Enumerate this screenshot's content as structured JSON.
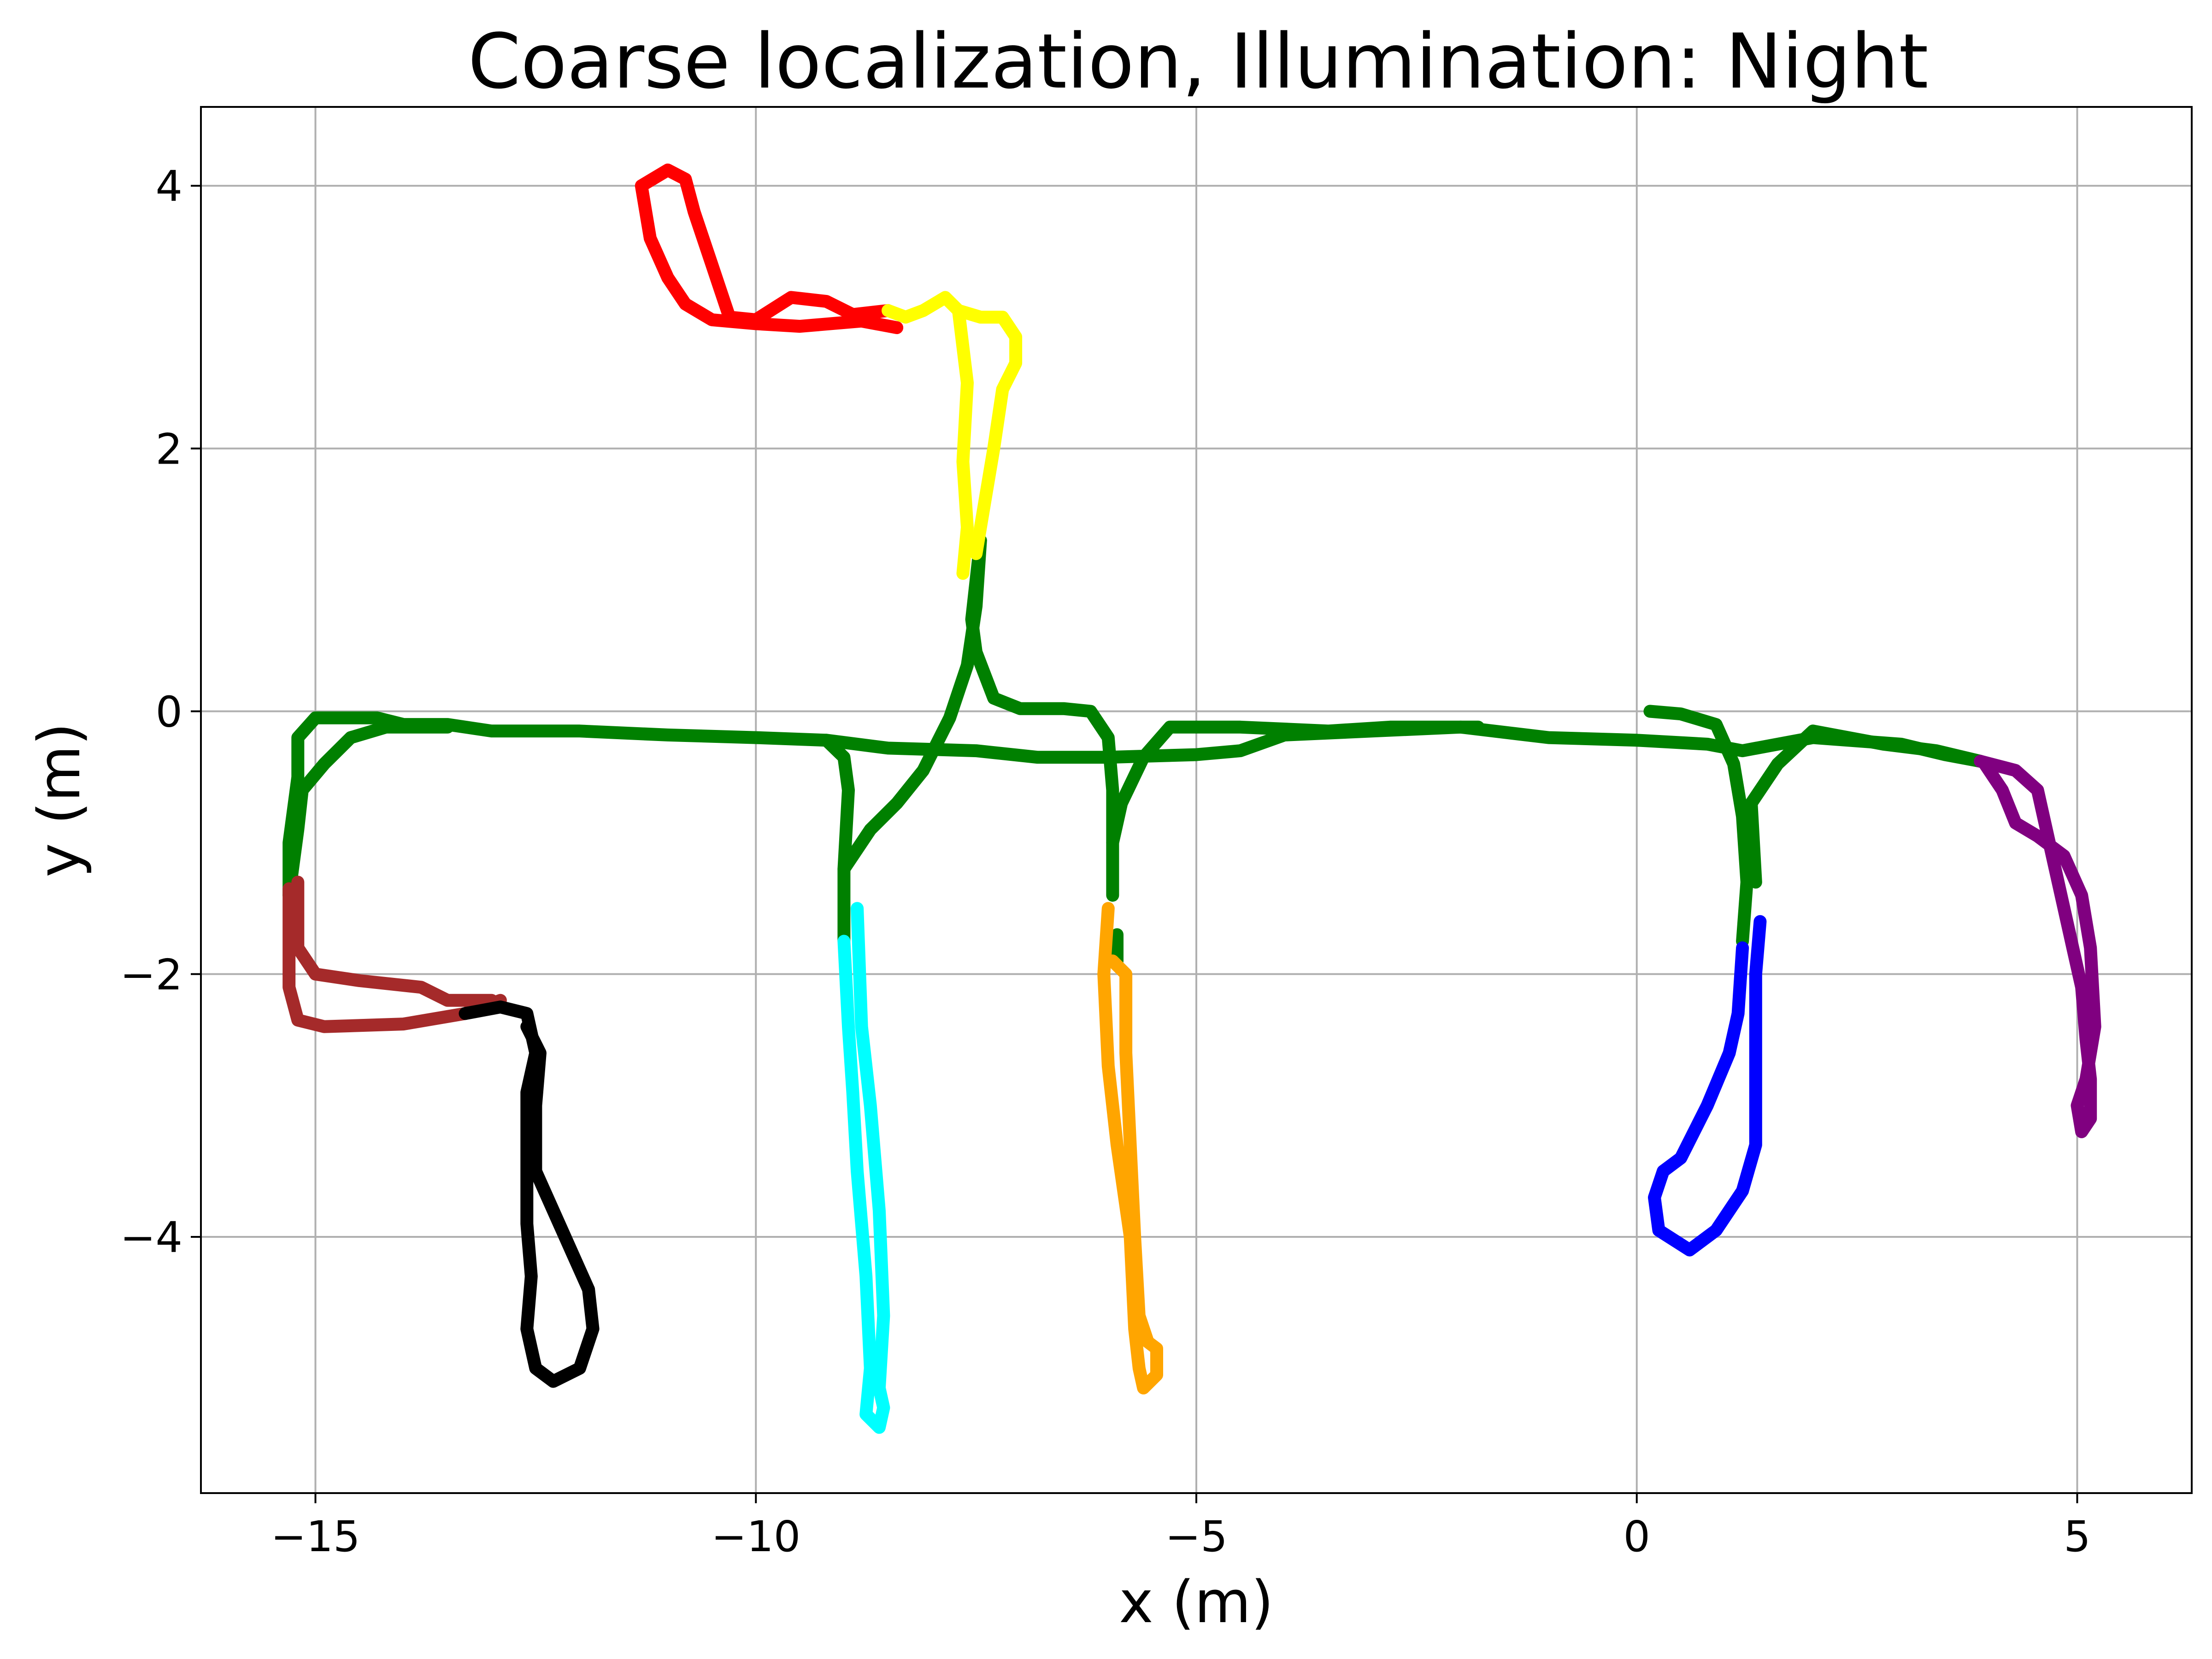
{
  "chart_data": {
    "type": "line",
    "title": "Coarse localization, Illumination: Night",
    "xlabel": "x (m)",
    "ylabel": "y (m)",
    "xlim": [
      -16.3,
      6.3
    ],
    "ylim": [
      -5.95,
      4.6
    ],
    "grid": true,
    "x_ticks": [
      -15,
      -10,
      -5,
      0,
      5
    ],
    "x_tick_labels": [
      "−15",
      "−10",
      "−5",
      "0",
      "5"
    ],
    "y_ticks": [
      -4,
      -2,
      0,
      2,
      4
    ],
    "y_tick_labels": [
      "−4",
      "−2",
      "0",
      "2",
      "4"
    ],
    "series": [
      {
        "color": "#008000",
        "segments": [
          [
            [
              -15.3,
              -1.4
            ],
            [
              -15.3,
              -1.0
            ],
            [
              -15.2,
              -0.5
            ],
            [
              -15.2,
              -0.2
            ],
            [
              -15.0,
              -0.05
            ],
            [
              -14.3,
              -0.05
            ],
            [
              -14.0,
              -0.1
            ],
            [
              -13.5,
              -0.1
            ],
            [
              -13.0,
              -0.15
            ],
            [
              -12.0,
              -0.15
            ],
            [
              -11.0,
              -0.18
            ],
            [
              -10.0,
              -0.2
            ],
            [
              -9.2,
              -0.22
            ],
            [
              -8.5,
              -0.28
            ],
            [
              -7.5,
              -0.3
            ],
            [
              -6.8,
              -0.35
            ],
            [
              -6.0,
              -0.35
            ],
            [
              -5.0,
              -0.33
            ],
            [
              -4.5,
              -0.3
            ],
            [
              -4.0,
              -0.18
            ],
            [
              -3.0,
              -0.15
            ],
            [
              -2.0,
              -0.12
            ],
            [
              -1.0,
              -0.2
            ],
            [
              0.0,
              -0.22
            ],
            [
              0.8,
              -0.25
            ],
            [
              1.2,
              -0.3
            ],
            [
              2.0,
              -0.2
            ],
            [
              3.0,
              -0.25
            ],
            [
              3.5,
              -0.33
            ],
            [
              3.9,
              -0.38
            ]
          ],
          [
            [
              -15.3,
              -1.4
            ],
            [
              -15.2,
              -0.9
            ],
            [
              -15.15,
              -0.6
            ],
            [
              -14.9,
              -0.4
            ],
            [
              -14.6,
              -0.2
            ],
            [
              -14.2,
              -0.12
            ],
            [
              -13.5,
              -0.12
            ]
          ],
          [
            [
              -9.0,
              -1.75
            ],
            [
              -9.0,
              -1.2
            ],
            [
              -8.95,
              -0.6
            ],
            [
              -9.0,
              -0.35
            ],
            [
              -9.2,
              -0.22
            ]
          ],
          [
            [
              -9.0,
              -1.2
            ],
            [
              -8.7,
              -0.9
            ],
            [
              -8.4,
              -0.7
            ],
            [
              -8.1,
              -0.45
            ],
            [
              -7.8,
              -0.05
            ],
            [
              -7.6,
              0.35
            ],
            [
              -7.5,
              0.8
            ],
            [
              -7.45,
              1.3
            ]
          ],
          [
            [
              -7.45,
              1.3
            ],
            [
              -7.55,
              0.7
            ],
            [
              -7.5,
              0.45
            ],
            [
              -7.3,
              0.1
            ],
            [
              -7.0,
              0.02
            ],
            [
              -6.5,
              0.02
            ],
            [
              -6.2,
              0.0
            ],
            [
              -6.0,
              -0.2
            ],
            [
              -5.95,
              -0.6
            ],
            [
              -5.95,
              -1.0
            ],
            [
              -5.95,
              -1.4
            ]
          ],
          [
            [
              -5.95,
              -1.0
            ],
            [
              -5.85,
              -0.7
            ],
            [
              -5.6,
              -0.35
            ],
            [
              -5.3,
              -0.12
            ],
            [
              -4.5,
              -0.12
            ],
            [
              -3.5,
              -0.15
            ],
            [
              -2.8,
              -0.12
            ],
            [
              -1.8,
              -0.12
            ]
          ],
          [
            [
              -5.9,
              -1.7
            ],
            [
              -5.9,
              -1.9
            ]
          ],
          [
            [
              1.2,
              -1.75
            ],
            [
              1.25,
              -1.3
            ],
            [
              1.2,
              -0.8
            ],
            [
              1.1,
              -0.4
            ],
            [
              0.9,
              -0.1
            ],
            [
              0.5,
              -0.02
            ],
            [
              0.15,
              0.0
            ]
          ],
          [
            [
              1.35,
              -1.3
            ],
            [
              1.3,
              -0.7
            ],
            [
              1.6,
              -0.4
            ],
            [
              2.0,
              -0.15
            ],
            [
              2.8,
              -0.25
            ],
            [
              3.4,
              -0.3
            ],
            [
              3.9,
              -0.38
            ]
          ]
        ]
      },
      {
        "color": "#a52a2a",
        "segments": [
          [
            [
              -15.3,
              -1.35
            ],
            [
              -15.3,
              -1.8
            ],
            [
              -15.3,
              -2.1
            ],
            [
              -15.2,
              -2.35
            ],
            [
              -14.9,
              -2.4
            ],
            [
              -14.0,
              -2.38
            ],
            [
              -13.3,
              -2.3
            ],
            [
              -12.9,
              -2.2
            ]
          ],
          [
            [
              -15.2,
              -1.3
            ],
            [
              -15.2,
              -1.8
            ],
            [
              -15.0,
              -2.0
            ],
            [
              -14.5,
              -2.05
            ],
            [
              -13.8,
              -2.1
            ],
            [
              -13.5,
              -2.2
            ],
            [
              -13.0,
              -2.2
            ]
          ]
        ]
      },
      {
        "color": "#000000",
        "segments": [
          [
            [
              -13.3,
              -2.3
            ],
            [
              -12.9,
              -2.25
            ],
            [
              -12.6,
              -2.3
            ],
            [
              -12.5,
              -2.6
            ],
            [
              -12.6,
              -2.9
            ],
            [
              -12.6,
              -3.4
            ],
            [
              -12.6,
              -3.9
            ],
            [
              -12.55,
              -4.3
            ],
            [
              -12.6,
              -4.7
            ],
            [
              -12.5,
              -5.0
            ],
            [
              -12.3,
              -5.1
            ],
            [
              -12.0,
              -5.0
            ],
            [
              -11.85,
              -4.7
            ],
            [
              -11.9,
              -4.4
            ],
            [
              -12.1,
              -4.1
            ],
            [
              -12.3,
              -3.8
            ],
            [
              -12.5,
              -3.5
            ],
            [
              -12.5,
              -3.0
            ],
            [
              -12.45,
              -2.6
            ],
            [
              -12.6,
              -2.4
            ]
          ]
        ]
      },
      {
        "color": "#00ffff",
        "segments": [
          [
            [
              -9.0,
              -1.75
            ],
            [
              -8.95,
              -2.4
            ],
            [
              -8.9,
              -2.9
            ],
            [
              -8.85,
              -3.5
            ],
            [
              -8.75,
              -4.3
            ],
            [
              -8.7,
              -5.0
            ],
            [
              -8.75,
              -5.35
            ],
            [
              -8.6,
              -5.45
            ],
            [
              -8.55,
              -5.3
            ],
            [
              -8.6,
              -5.15
            ],
            [
              -8.55,
              -4.6
            ],
            [
              -8.6,
              -3.8
            ],
            [
              -8.7,
              -3.0
            ],
            [
              -8.8,
              -2.4
            ],
            [
              -8.85,
              -1.5
            ]
          ]
        ]
      },
      {
        "color": "#ffa500",
        "segments": [
          [
            [
              -6.0,
              -1.5
            ],
            [
              -6.05,
              -2.0
            ],
            [
              -6.0,
              -2.7
            ],
            [
              -5.9,
              -3.3
            ],
            [
              -5.75,
              -4.0
            ],
            [
              -5.7,
              -4.7
            ],
            [
              -5.65,
              -5.0
            ],
            [
              -5.6,
              -5.15
            ],
            [
              -5.45,
              -5.05
            ],
            [
              -5.45,
              -4.85
            ],
            [
              -5.55,
              -4.8
            ],
            [
              -5.65,
              -4.6
            ],
            [
              -5.7,
              -4.0
            ],
            [
              -5.75,
              -3.3
            ],
            [
              -5.8,
              -2.6
            ],
            [
              -5.8,
              -2.0
            ],
            [
              -5.95,
              -1.9
            ]
          ]
        ]
      },
      {
        "color": "#0000ff",
        "segments": [
          [
            [
              1.2,
              -1.8
            ],
            [
              1.15,
              -2.3
            ],
            [
              1.05,
              -2.6
            ],
            [
              0.8,
              -3.0
            ],
            [
              0.5,
              -3.4
            ],
            [
              0.3,
              -3.5
            ],
            [
              0.2,
              -3.7
            ],
            [
              0.25,
              -3.95
            ],
            [
              0.6,
              -4.1
            ],
            [
              0.9,
              -3.95
            ],
            [
              1.2,
              -3.65
            ],
            [
              1.35,
              -3.3
            ],
            [
              1.35,
              -2.6
            ],
            [
              1.35,
              -2.0
            ],
            [
              1.4,
              -1.6
            ]
          ]
        ]
      },
      {
        "color": "#800080",
        "segments": [
          [
            [
              3.9,
              -0.38
            ],
            [
              4.3,
              -0.45
            ],
            [
              4.55,
              -0.6
            ],
            [
              4.65,
              -0.9
            ],
            [
              4.75,
              -1.2
            ],
            [
              4.85,
              -1.5
            ],
            [
              4.95,
              -1.8
            ],
            [
              5.05,
              -2.1
            ],
            [
              5.1,
              -2.5
            ],
            [
              5.15,
              -2.8
            ],
            [
              5.15,
              -3.1
            ],
            [
              5.05,
              -3.2
            ],
            [
              5.0,
              -3.0
            ],
            [
              5.1,
              -2.8
            ],
            [
              5.2,
              -2.4
            ],
            [
              5.15,
              -1.8
            ],
            [
              5.05,
              -1.4
            ],
            [
              4.85,
              -1.1
            ],
            [
              4.55,
              -0.95
            ],
            [
              4.3,
              -0.85
            ],
            [
              4.15,
              -0.6
            ],
            [
              3.95,
              -0.4
            ]
          ]
        ]
      },
      {
        "color": "#ff0000",
        "segments": [
          [
            [
              -8.4,
              2.92
            ],
            [
              -8.8,
              2.97
            ],
            [
              -9.5,
              2.93
            ],
            [
              -10.0,
              2.95
            ],
            [
              -10.5,
              2.98
            ],
            [
              -10.8,
              3.1
            ],
            [
              -11.0,
              3.3
            ],
            [
              -11.2,
              3.6
            ],
            [
              -11.3,
              4.0
            ],
            [
              -11.0,
              4.12
            ],
            [
              -10.8,
              4.05
            ],
            [
              -10.7,
              3.8
            ],
            [
              -10.5,
              3.4
            ],
            [
              -10.3,
              3.0
            ],
            [
              -10.0,
              2.98
            ],
            [
              -9.6,
              3.15
            ],
            [
              -9.2,
              3.12
            ],
            [
              -8.9,
              3.02
            ],
            [
              -8.5,
              3.05
            ]
          ]
        ]
      },
      {
        "color": "#ffff00",
        "segments": [
          [
            [
              -8.5,
              3.05
            ],
            [
              -8.3,
              3.0
            ],
            [
              -8.1,
              3.05
            ],
            [
              -7.85,
              3.15
            ],
            [
              -7.7,
              3.05
            ],
            [
              -7.45,
              3.0
            ],
            [
              -7.2,
              3.0
            ],
            [
              -7.05,
              2.85
            ],
            [
              -7.05,
              2.65
            ],
            [
              -7.2,
              2.45
            ],
            [
              -7.3,
              2.0
            ],
            [
              -7.4,
              1.6
            ],
            [
              -7.5,
              1.2
            ]
          ],
          [
            [
              -7.7,
              3.05
            ],
            [
              -7.6,
              2.5
            ],
            [
              -7.65,
              1.9
            ],
            [
              -7.6,
              1.4
            ],
            [
              -7.65,
              1.05
            ]
          ]
        ]
      }
    ]
  }
}
